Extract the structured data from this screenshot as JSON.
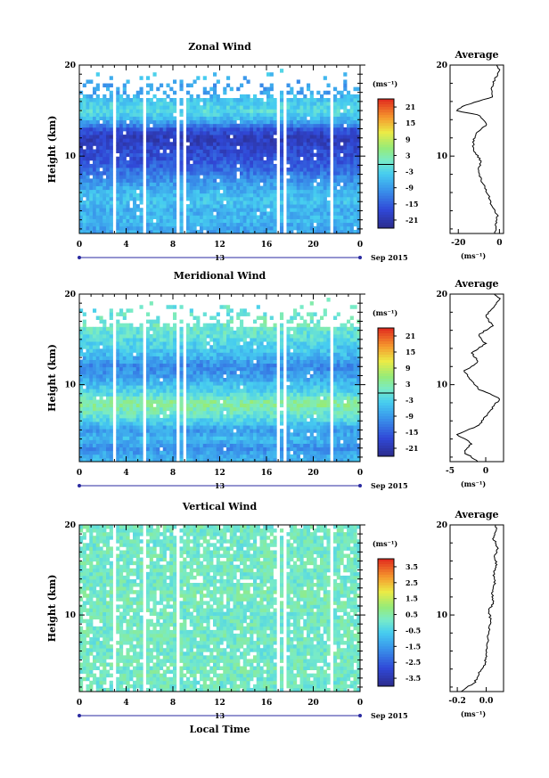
{
  "figure": {
    "x_label": "Local Time",
    "date_label": "13",
    "date_suffix": "Sep 2015",
    "y_label": "Height (km)",
    "unit_label": "(ms⁻¹)",
    "average_title": "Average",
    "average_xlabel": "(ms⁻¹)"
  },
  "chart_data": [
    {
      "type": "heatmap",
      "title": "Zonal Wind",
      "xlabel": "Local Time",
      "ylabel": "Height (km)",
      "x_ticks": [
        "0",
        "4",
        "8",
        "12",
        "16",
        "20",
        "0"
      ],
      "xlim": [
        0,
        24
      ],
      "y_ticks": [
        "10",
        "20"
      ],
      "ylim": [
        1.5,
        20
      ],
      "colorbar": {
        "label": "(ms⁻¹)",
        "ticks": [
          "21",
          "15",
          "9",
          "3",
          "-3",
          "-9",
          "-15",
          "-21"
        ],
        "range": [
          -24,
          24
        ]
      },
      "gaps_hours": [
        3.0,
        5.5,
        8.5,
        9.0,
        17.0,
        17.5,
        21.5
      ],
      "height_profile": [
        {
          "h": 2,
          "value": -8
        },
        {
          "h": 3,
          "value": -6
        },
        {
          "h": 4,
          "value": -7
        },
        {
          "h": 5,
          "value": -5
        },
        {
          "h": 6,
          "value": -6
        },
        {
          "h": 7,
          "value": -9
        },
        {
          "h": 8,
          "value": -12
        },
        {
          "h": 9,
          "value": -15
        },
        {
          "h": 10,
          "value": -17
        },
        {
          "h": 11,
          "value": -18
        },
        {
          "h": 12,
          "value": -20
        },
        {
          "h": 13,
          "value": -16
        },
        {
          "h": 14,
          "value": -6
        },
        {
          "h": 15,
          "value": -2
        },
        {
          "h": 16,
          "value": -4
        },
        {
          "h": 17,
          "value": -8
        },
        {
          "h": 18,
          "value": -9
        },
        {
          "h": 19,
          "value": -5
        },
        {
          "h": 20,
          "value": -2
        }
      ],
      "average": {
        "title": "Average",
        "xlabel": "(ms⁻¹)",
        "x_ticks": [
          "-20",
          "0"
        ],
        "xlim": [
          -24,
          2
        ],
        "y_ticks": [
          "10",
          "20"
        ],
        "points": [
          {
            "h": 1.5,
            "value": -2
          },
          {
            "h": 2.5,
            "value": -2
          },
          {
            "h": 3.5,
            "value": -1
          },
          {
            "h": 4.5,
            "value": -4
          },
          {
            "h": 5.5,
            "value": -5
          },
          {
            "h": 6.5,
            "value": -7
          },
          {
            "h": 7.5,
            "value": -9
          },
          {
            "h": 8.5,
            "value": -10
          },
          {
            "h": 9.5,
            "value": -9
          },
          {
            "h": 10.5,
            "value": -12
          },
          {
            "h": 11.5,
            "value": -13
          },
          {
            "h": 12.5,
            "value": -11
          },
          {
            "h": 13.5,
            "value": -6
          },
          {
            "h": 14.5,
            "value": -10
          },
          {
            "h": 15.0,
            "value": -21
          },
          {
            "h": 15.5,
            "value": -18
          },
          {
            "h": 16.5,
            "value": -3
          },
          {
            "h": 17.5,
            "value": -4
          },
          {
            "h": 18.5,
            "value": -2
          },
          {
            "h": 19.5,
            "value": 0
          },
          {
            "h": 20,
            "value": -1
          }
        ]
      }
    },
    {
      "type": "heatmap",
      "title": "Meridional Wind",
      "xlabel": "Local Time",
      "ylabel": "Height (km)",
      "x_ticks": [
        "0",
        "4",
        "8",
        "12",
        "16",
        "20",
        "0"
      ],
      "xlim": [
        0,
        24
      ],
      "y_ticks": [
        "10",
        "20"
      ],
      "ylim": [
        1.5,
        20
      ],
      "colorbar": {
        "label": "(ms⁻¹)",
        "ticks": [
          "21",
          "15",
          "9",
          "3",
          "-3",
          "-9",
          "-15",
          "-21"
        ],
        "range": [
          -24,
          24
        ]
      },
      "gaps_hours": [
        3.0,
        5.5,
        8.5,
        9.0,
        17.0,
        17.5,
        21.5
      ],
      "height_profile": [
        {
          "h": 2,
          "value": -7
        },
        {
          "h": 3,
          "value": -10
        },
        {
          "h": 4,
          "value": -6
        },
        {
          "h": 5,
          "value": -9
        },
        {
          "h": 6,
          "value": -3
        },
        {
          "h": 7,
          "value": 1
        },
        {
          "h": 8,
          "value": 4
        },
        {
          "h": 9,
          "value": -2
        },
        {
          "h": 10,
          "value": -5
        },
        {
          "h": 11,
          "value": -9
        },
        {
          "h": 12,
          "value": -11
        },
        {
          "h": 13,
          "value": -7
        },
        {
          "h": 14,
          "value": -4
        },
        {
          "h": 15,
          "value": -2
        },
        {
          "h": 16,
          "value": 0
        },
        {
          "h": 17,
          "value": 1
        },
        {
          "h": 18,
          "value": -1
        },
        {
          "h": 19,
          "value": 0
        },
        {
          "h": 20,
          "value": 0
        }
      ],
      "average": {
        "title": "Average",
        "xlabel": "(ms⁻¹)",
        "x_ticks": [
          "-5",
          "0"
        ],
        "xlim": [
          -5,
          2.5
        ],
        "y_ticks": [
          "10",
          "20"
        ],
        "points": [
          {
            "h": 1.5,
            "value": -1
          },
          {
            "h": 2.5,
            "value": -3
          },
          {
            "h": 3.5,
            "value": -2
          },
          {
            "h": 4.5,
            "value": -4
          },
          {
            "h": 5.5,
            "value": -1
          },
          {
            "h": 6.5,
            "value": 0
          },
          {
            "h": 7.5,
            "value": 1
          },
          {
            "h": 8.5,
            "value": 2
          },
          {
            "h": 9.5,
            "value": -1
          },
          {
            "h": 10.5,
            "value": -2
          },
          {
            "h": 11.5,
            "value": -3
          },
          {
            "h": 12.5,
            "value": -1
          },
          {
            "h": 13.5,
            "value": -2
          },
          {
            "h": 14.5,
            "value": 0
          },
          {
            "h": 15.5,
            "value": -1
          },
          {
            "h": 16.5,
            "value": 1
          },
          {
            "h": 17.5,
            "value": 0
          },
          {
            "h": 18.5,
            "value": 1
          },
          {
            "h": 19.5,
            "value": 2
          },
          {
            "h": 20,
            "value": 1
          }
        ]
      }
    },
    {
      "type": "heatmap",
      "title": "Vertical Wind",
      "xlabel": "Local Time",
      "ylabel": "Height (km)",
      "x_ticks": [
        "0",
        "4",
        "8",
        "12",
        "16",
        "20",
        "0"
      ],
      "xlim": [
        0,
        24
      ],
      "y_ticks": [
        "10",
        "20"
      ],
      "ylim": [
        1.5,
        20
      ],
      "colorbar": {
        "label": "(ms⁻¹)",
        "ticks": [
          "3.5",
          "2.5",
          "1.5",
          "0.5",
          "-0.5",
          "-1.5",
          "-2.5",
          "-3.5"
        ],
        "range": [
          -4,
          4
        ]
      },
      "gaps_hours": [
        3.0,
        5.5,
        8.5,
        17.0,
        17.5,
        21.5
      ],
      "height_profile": [
        {
          "h": 2,
          "value": 0.1
        },
        {
          "h": 4,
          "value": 0.2
        },
        {
          "h": 6,
          "value": 0.1
        },
        {
          "h": 8,
          "value": 0.2
        },
        {
          "h": 10,
          "value": 0.1
        },
        {
          "h": 12,
          "value": 0.3
        },
        {
          "h": 14,
          "value": 0.1
        },
        {
          "h": 16,
          "value": 0.2
        },
        {
          "h": 18,
          "value": 0.1
        },
        {
          "h": 20,
          "value": 0.2
        }
      ],
      "average": {
        "title": "Average",
        "xlabel": "(ms⁻¹)",
        "x_ticks": [
          "-0.2",
          "0.0"
        ],
        "xlim": [
          -0.25,
          0.12
        ],
        "y_ticks": [
          "10",
          "20"
        ],
        "points": [
          {
            "h": 1.5,
            "value": -0.18
          },
          {
            "h": 2.5,
            "value": -0.08
          },
          {
            "h": 3.5,
            "value": -0.05
          },
          {
            "h": 4.5,
            "value": -0.01
          },
          {
            "h": 5.5,
            "value": 0.0
          },
          {
            "h": 6.5,
            "value": 0.01
          },
          {
            "h": 7.5,
            "value": 0.01
          },
          {
            "h": 8.5,
            "value": 0.02
          },
          {
            "h": 9.5,
            "value": 0.03
          },
          {
            "h": 10.5,
            "value": 0.02
          },
          {
            "h": 11.5,
            "value": 0.05
          },
          {
            "h": 12.5,
            "value": 0.04
          },
          {
            "h": 13.5,
            "value": 0.06
          },
          {
            "h": 14.5,
            "value": 0.05
          },
          {
            "h": 15.5,
            "value": 0.07
          },
          {
            "h": 16.5,
            "value": 0.06
          },
          {
            "h": 17.5,
            "value": 0.08
          },
          {
            "h": 18.5,
            "value": 0.05
          },
          {
            "h": 19.5,
            "value": 0.07
          },
          {
            "h": 20,
            "value": 0.06
          }
        ]
      }
    }
  ]
}
